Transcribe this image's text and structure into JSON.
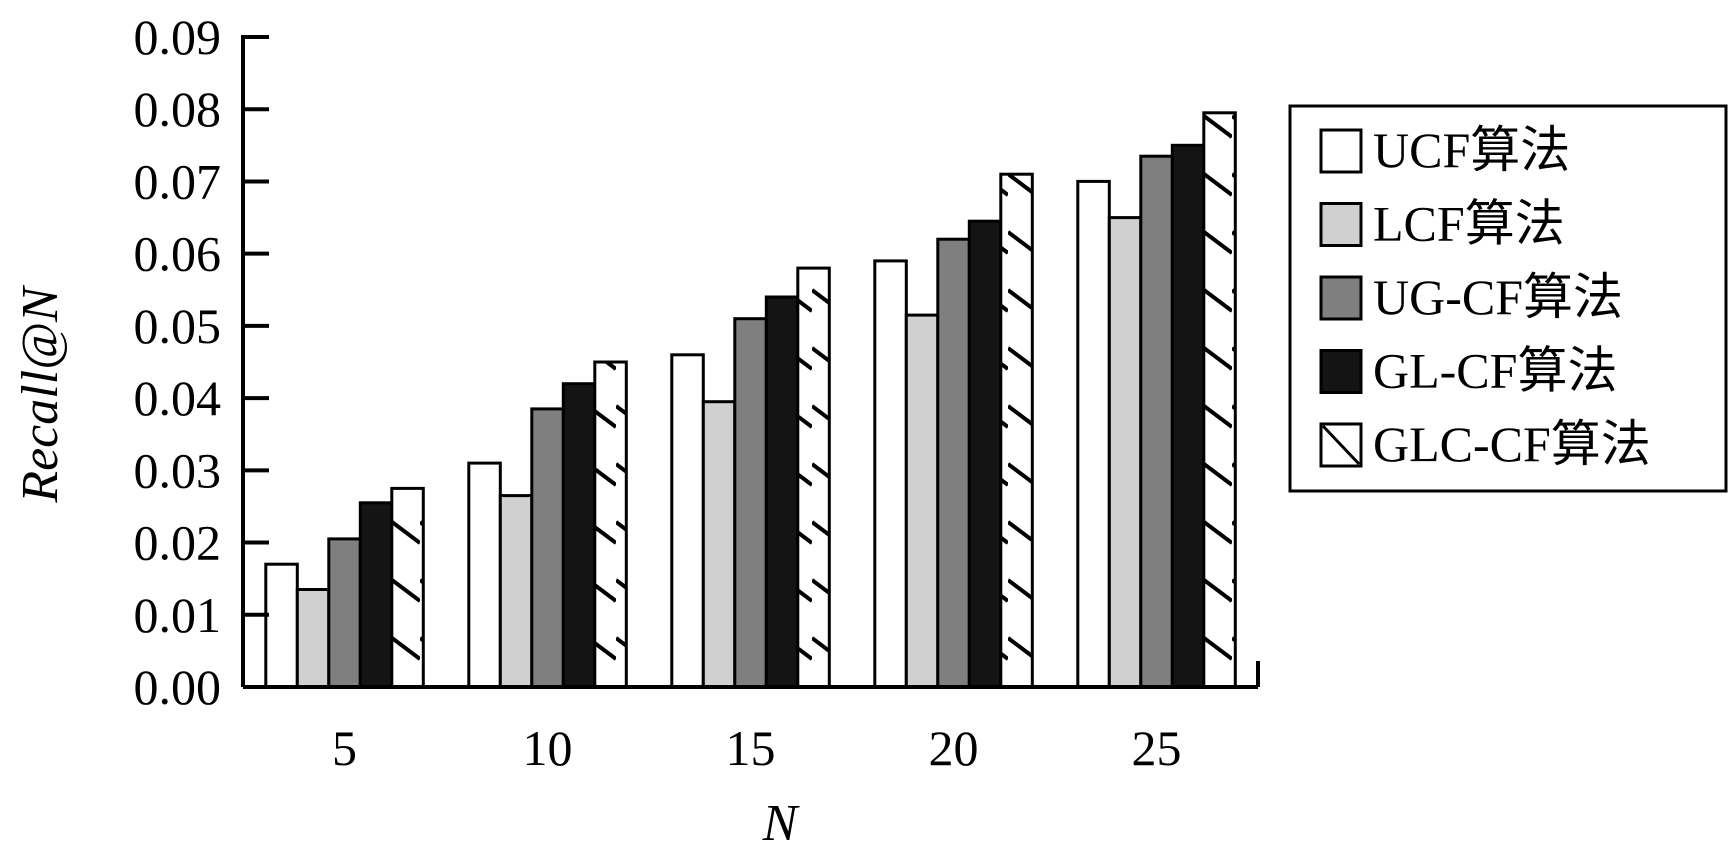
{
  "chart_data": {
    "type": "bar",
    "xlabel": "N",
    "ylabel_parts": {
      "italic": "Recall@",
      "main": "N"
    },
    "categories": [
      "5",
      "10",
      "15",
      "20",
      "25"
    ],
    "ylim": [
      0,
      0.09
    ],
    "yticks": [
      "0.00",
      "0.01",
      "0.02",
      "0.03",
      "0.04",
      "0.05",
      "0.06",
      "0.07",
      "0.08",
      "0.09"
    ],
    "grid": false,
    "legend_position": "right",
    "series": [
      {
        "name": "UCF算法",
        "fill": "#ffffff",
        "pattern": "none",
        "values": [
          0.017,
          0.031,
          0.046,
          0.059,
          0.07
        ]
      },
      {
        "name": "LCF算法",
        "fill": "#d0d0d0",
        "pattern": "none",
        "values": [
          0.0135,
          0.0265,
          0.0395,
          0.0515,
          0.065
        ]
      },
      {
        "name": "UG-CF算法",
        "fill": "#7f7f7f",
        "pattern": "none",
        "values": [
          0.0205,
          0.0385,
          0.051,
          0.062,
          0.0735
        ]
      },
      {
        "name": "GL-CF算法",
        "fill": "#141414",
        "pattern": "none",
        "values": [
          0.0255,
          0.042,
          0.054,
          0.0645,
          0.075
        ]
      },
      {
        "name": "GLC-CF算法",
        "fill": "#ffffff",
        "pattern": "diagonal",
        "values": [
          0.0275,
          0.045,
          0.058,
          0.071,
          0.0795
        ]
      }
    ]
  }
}
